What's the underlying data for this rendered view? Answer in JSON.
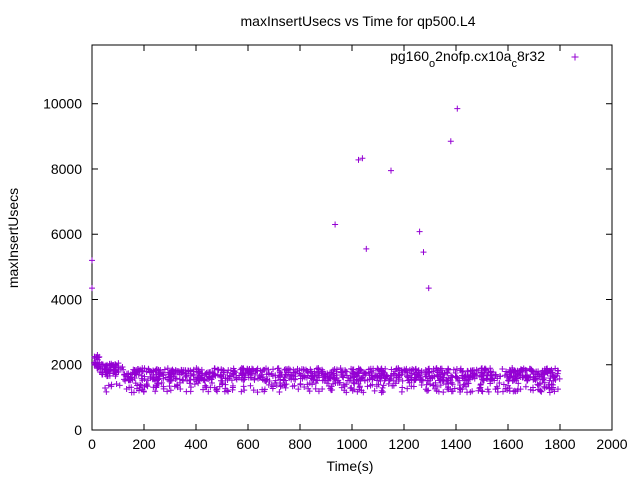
{
  "chart_data": {
    "type": "scatter",
    "title": "maxInsertUsecs vs Time for qp500.L4",
    "xlabel": "Time(s)",
    "ylabel": "maxInsertUsecs",
    "xlim": [
      0,
      2000
    ],
    "ylim": [
      0,
      11800
    ],
    "xticks": [
      0,
      200,
      400,
      600,
      800,
      1000,
      1200,
      1400,
      1600,
      1800,
      2000
    ],
    "yticks": [
      0,
      2000,
      4000,
      6000,
      8000,
      10000
    ],
    "grid": false,
    "legend_position": "top-right",
    "marker": "plus",
    "series_color": "#9400d3",
    "series": [
      {
        "name_parts": {
          "a": "pg160",
          "b": "o",
          "c": "2nofp.cx10a",
          "d": "c",
          "e": "8r32"
        },
        "outliers": [
          [
            0,
            5200
          ],
          [
            0,
            4350
          ],
          [
            935,
            6300
          ],
          [
            1025,
            8280
          ],
          [
            1040,
            8330
          ],
          [
            1055,
            5550
          ],
          [
            1150,
            7950
          ],
          [
            1260,
            6080
          ],
          [
            1275,
            5450
          ],
          [
            1295,
            4350
          ],
          [
            1380,
            8850
          ],
          [
            1405,
            9850
          ]
        ],
        "bands": [
          {
            "from": 5,
            "to": 30,
            "low": 1850,
            "high": 2300
          },
          {
            "from": 30,
            "to": 120,
            "low": 1650,
            "high": 2050
          },
          {
            "from": 120,
            "to": 1800,
            "low": 1500,
            "high": 1900
          },
          {
            "from": 50,
            "to": 1800,
            "low": 1150,
            "high": 1450
          }
        ],
        "band_counts": [
          25,
          60,
          900,
          260
        ]
      }
    ]
  }
}
